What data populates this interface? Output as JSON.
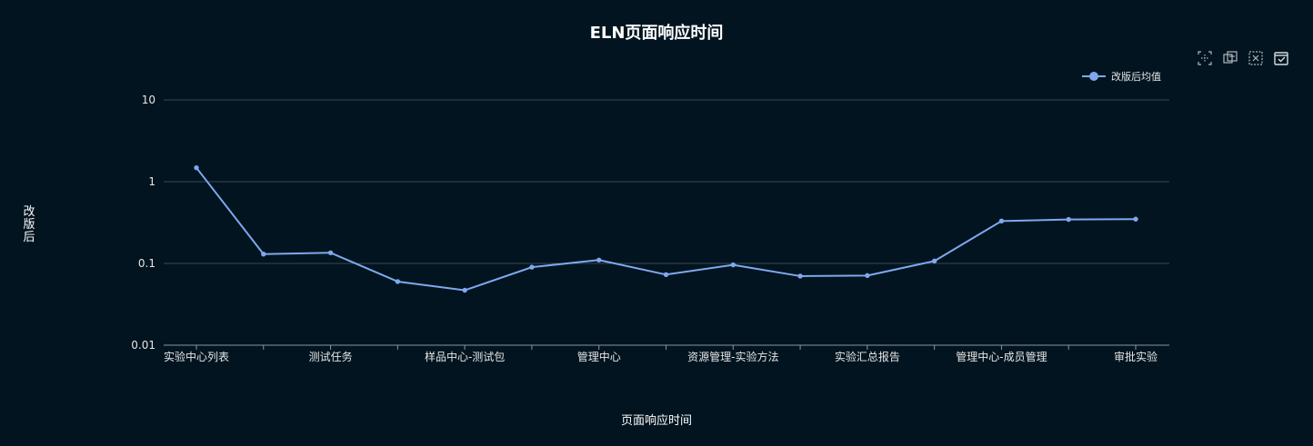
{
  "chart_data": {
    "type": "line",
    "title": "ELN页面响应时间",
    "xlabel": "页面响应时间",
    "ylabel": "改版后",
    "yscale": "log",
    "ylim": [
      0.01,
      10
    ],
    "yticks": [
      "10",
      "1",
      "0.1",
      "0.01"
    ],
    "yticks_values": [
      10,
      1,
      0.1,
      0.01
    ],
    "grid": true,
    "legend_position": "top-right",
    "categories": [
      "实验中心列表",
      "",
      "测试任务",
      "",
      "样品中心-测试包",
      "",
      "管理中心",
      "",
      "资源管理-实验方法",
      "",
      "实验汇总报告",
      "",
      "管理中心-成员管理",
      "",
      "审批实验"
    ],
    "series": [
      {
        "name": "改版后均值",
        "color": "#7fa8ee",
        "values": [
          1.48,
          0.13,
          0.135,
          0.06,
          0.047,
          0.09,
          0.11,
          0.073,
          0.096,
          0.07,
          0.071,
          0.107,
          0.33,
          0.345,
          0.348
        ]
      }
    ]
  },
  "toolbox": {
    "icons": [
      "area-zoom-icon",
      "zoom-reset-icon",
      "clear-icon",
      "save-image-icon"
    ]
  },
  "colors": {
    "background": "#01141f",
    "line": "#7fa8ee",
    "grid": "#3a4651",
    "axis": "#8c96a0",
    "text": "#ffffff"
  }
}
